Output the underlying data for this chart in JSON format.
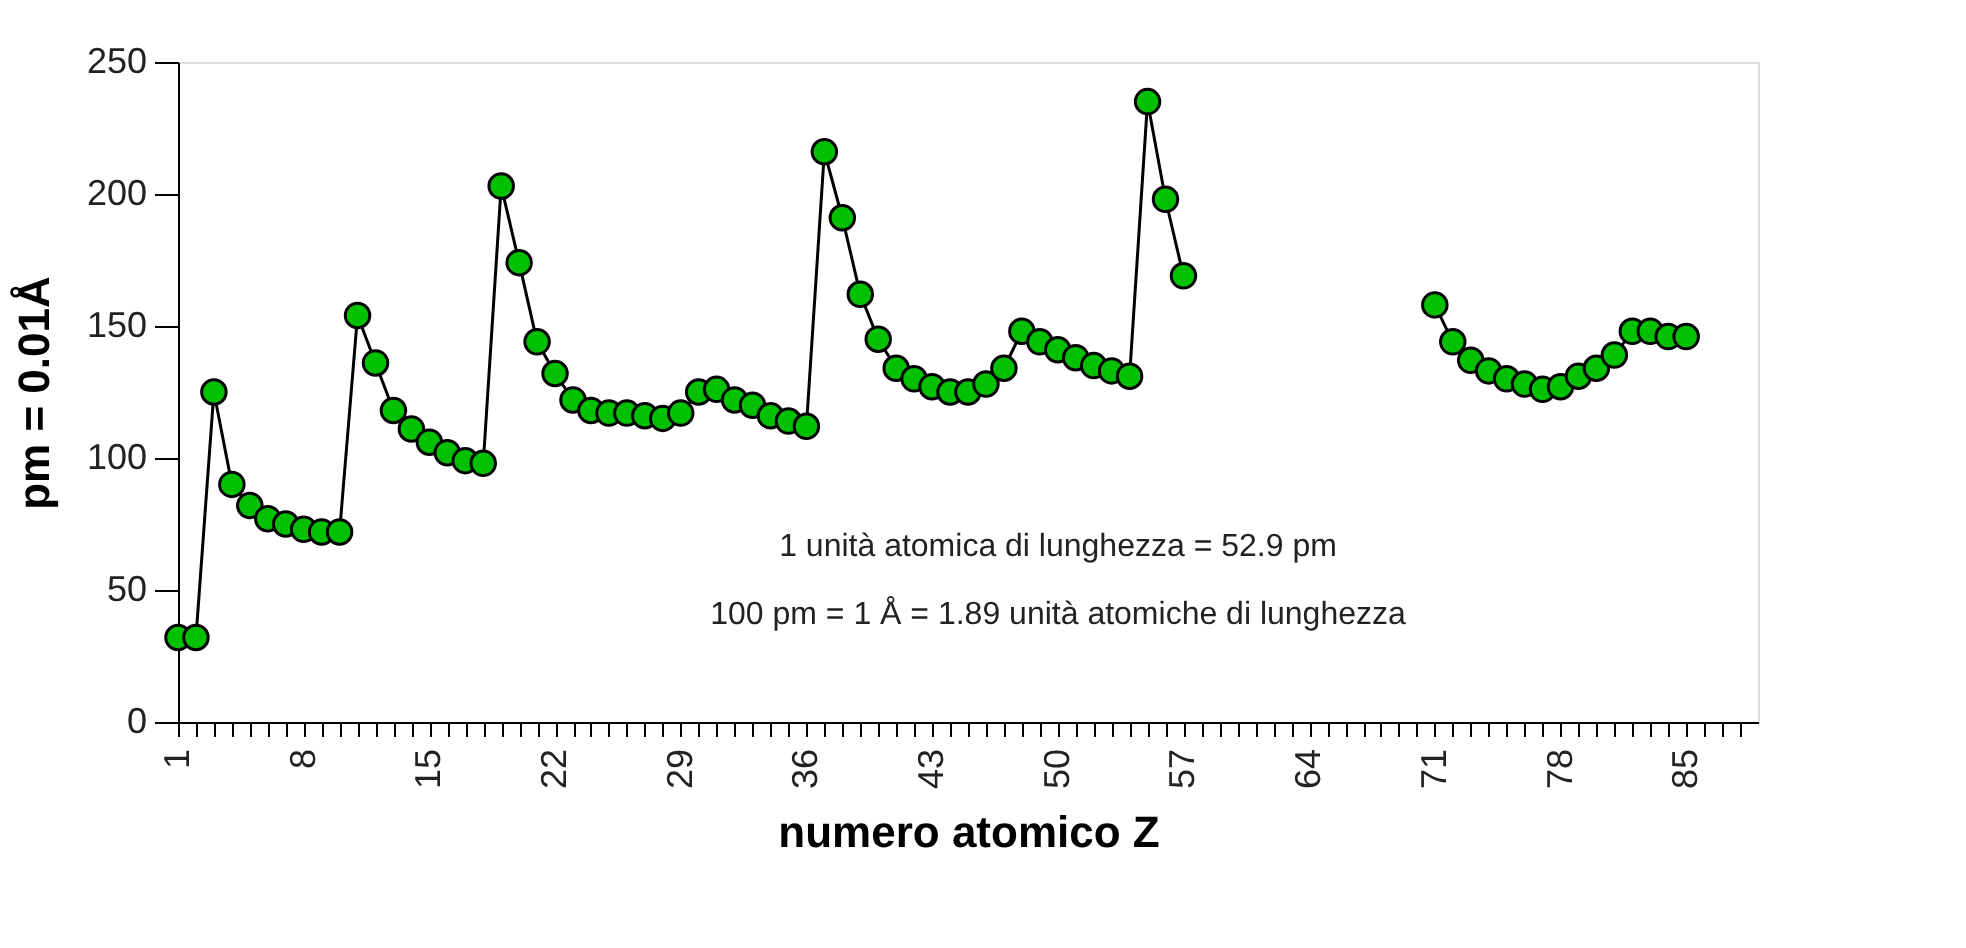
{
  "chart_data": {
    "type": "line",
    "xlabel": "numero atomico Z",
    "ylabel": "pm = 0.01Å",
    "x": [
      1,
      2,
      3,
      4,
      5,
      6,
      7,
      8,
      9,
      10,
      11,
      12,
      13,
      14,
      15,
      16,
      17,
      18,
      19,
      20,
      21,
      22,
      23,
      24,
      25,
      26,
      27,
      28,
      29,
      30,
      31,
      32,
      33,
      34,
      35,
      36,
      37,
      38,
      39,
      40,
      41,
      42,
      43,
      44,
      45,
      46,
      47,
      48,
      49,
      50,
      51,
      52,
      53,
      54,
      55,
      56,
      57,
      58,
      59,
      60,
      61,
      62,
      63,
      64,
      65,
      66,
      67,
      68,
      69,
      70,
      71,
      72,
      73,
      74,
      75,
      76,
      77,
      78,
      79,
      80,
      81,
      82,
      83,
      84,
      85
    ],
    "series": [
      {
        "color": "#00c000",
        "values": [
          32,
          32,
          125,
          90,
          82,
          77,
          75,
          73,
          72,
          72,
          154,
          136,
          118,
          111,
          106,
          102,
          99,
          98,
          203,
          174,
          144,
          132,
          122,
          118,
          117,
          117,
          116,
          115,
          117,
          125,
          126,
          122,
          120,
          116,
          114,
          112,
          216,
          191,
          162,
          145,
          134,
          130,
          127,
          125,
          125,
          128,
          134,
          148,
          144,
          141,
          138,
          135,
          133,
          131,
          235,
          198,
          169,
          null,
          null,
          null,
          null,
          null,
          null,
          null,
          null,
          null,
          null,
          null,
          null,
          null,
          158,
          144,
          137,
          133,
          130,
          128,
          126,
          127,
          131,
          134,
          139,
          148,
          148,
          146,
          146
        ]
      }
    ],
    "marker": "circle",
    "line_style": "solid",
    "grid": false,
    "xlim": [
      1,
      89
    ],
    "ylim": [
      0,
      250
    ],
    "yticks": [
      0,
      50,
      100,
      150,
      200,
      250
    ],
    "xticks": [
      1,
      {
        "value": 2,
        "label": null
      },
      {
        "value": 3,
        "label": null
      },
      {
        "value": 4,
        "label": null
      },
      {
        "value": 5,
        "label": null
      },
      {
        "value": 6,
        "label": null
      },
      {
        "value": 7,
        "label": null
      },
      8,
      {
        "value": 9,
        "label": null
      },
      {
        "value": 10,
        "label": null
      },
      {
        "value": 11,
        "label": null
      },
      {
        "value": 12,
        "label": null
      },
      {
        "value": 13,
        "label": null
      },
      {
        "value": 14,
        "label": null
      },
      15,
      {
        "value": 16,
        "label": null
      },
      {
        "value": 17,
        "label": null
      },
      {
        "value": 18,
        "label": null
      },
      {
        "value": 19,
        "label": null
      },
      {
        "value": 20,
        "label": null
      },
      {
        "value": 21,
        "label": null
      },
      22,
      {
        "value": 23,
        "label": null
      },
      {
        "value": 24,
        "label": null
      },
      {
        "value": 25,
        "label": null
      },
      {
        "value": 26,
        "label": null
      },
      {
        "value": 27,
        "label": null
      },
      {
        "value": 28,
        "label": null
      },
      29,
      {
        "value": 30,
        "label": null
      },
      {
        "value": 31,
        "label": null
      },
      {
        "value": 32,
        "label": null
      },
      {
        "value": 33,
        "label": null
      },
      {
        "value": 34,
        "label": null
      },
      {
        "value": 35,
        "label": null
      },
      36,
      {
        "value": 37,
        "label": null
      },
      {
        "value": 38,
        "label": null
      },
      {
        "value": 39,
        "label": null
      },
      {
        "value": 40,
        "label": null
      },
      {
        "value": 41,
        "label": null
      },
      {
        "value": 42,
        "label": null
      },
      43,
      {
        "value": 44,
        "label": null
      },
      {
        "value": 45,
        "label": null
      },
      {
        "value": 46,
        "label": null
      },
      {
        "value": 47,
        "label": null
      },
      {
        "value": 48,
        "label": null
      },
      {
        "value": 49,
        "label": null
      },
      50,
      {
        "value": 51,
        "label": null
      },
      {
        "value": 52,
        "label": null
      },
      {
        "value": 53,
        "label": null
      },
      {
        "value": 54,
        "label": null
      },
      {
        "value": 55,
        "label": null
      },
      {
        "value": 56,
        "label": null
      },
      57,
      {
        "value": 58,
        "label": null
      },
      {
        "value": 59,
        "label": null
      },
      {
        "value": 60,
        "label": null
      },
      {
        "value": 61,
        "label": null
      },
      {
        "value": 62,
        "label": null
      },
      {
        "value": 63,
        "label": null
      },
      64,
      {
        "value": 65,
        "label": null
      },
      {
        "value": 66,
        "label": null
      },
      {
        "value": 67,
        "label": null
      },
      {
        "value": 68,
        "label": null
      },
      {
        "value": 69,
        "label": null
      },
      {
        "value": 70,
        "label": null
      },
      71,
      {
        "value": 72,
        "label": null
      },
      {
        "value": 73,
        "label": null
      },
      {
        "value": 74,
        "label": null
      },
      {
        "value": 75,
        "label": null
      },
      {
        "value": 76,
        "label": null
      },
      {
        "value": 77,
        "label": null
      },
      78,
      {
        "value": 79,
        "label": null
      },
      {
        "value": 80,
        "label": null
      },
      {
        "value": 81,
        "label": null
      },
      {
        "value": 82,
        "label": null
      },
      {
        "value": 83,
        "label": null
      },
      {
        "value": 84,
        "label": null
      },
      85,
      {
        "value": 86,
        "label": null
      },
      {
        "value": 87,
        "label": null
      },
      {
        "value": 88,
        "label": null
      }
    ],
    "annotations": [
      "1 unità atomica di lunghezza = 52.9 pm",
      "100 pm = 1 Å = 1.89 unità atomiche di lunghezza"
    ]
  }
}
